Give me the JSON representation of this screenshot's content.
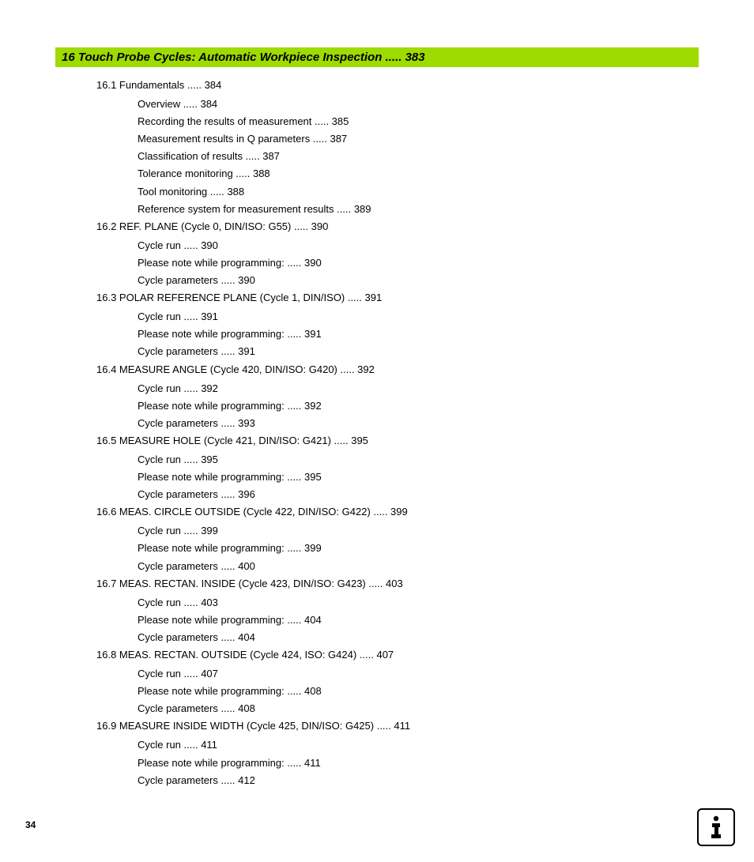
{
  "heading": {
    "number": "16",
    "title": "Touch Probe Cycles: Automatic Workpiece Inspection",
    "page": "383"
  },
  "sections": [
    {
      "num": "16.1",
      "title": "Fundamentals",
      "page": "384",
      "subs": [
        {
          "title": "Overview",
          "page": "384"
        },
        {
          "title": "Recording the results of measurement",
          "page": "385"
        },
        {
          "title": "Measurement results in Q parameters",
          "page": "387"
        },
        {
          "title": "Classification of results",
          "page": "387"
        },
        {
          "title": "Tolerance monitoring",
          "page": "388"
        },
        {
          "title": "Tool monitoring",
          "page": "388"
        },
        {
          "title": "Reference system for measurement results",
          "page": "389"
        }
      ]
    },
    {
      "num": "16.2",
      "title": "REF. PLANE (Cycle 0, DIN/ISO: G55)",
      "page": "390",
      "subs": [
        {
          "title": "Cycle run",
          "page": "390"
        },
        {
          "title": "Please note while programming:",
          "page": "390"
        },
        {
          "title": "Cycle parameters",
          "page": "390"
        }
      ]
    },
    {
      "num": "16.3",
      "title": "POLAR REFERENCE PLANE (Cycle 1, DIN/ISO)",
      "page": "391",
      "subs": [
        {
          "title": "Cycle run",
          "page": "391"
        },
        {
          "title": "Please note while programming:",
          "page": "391"
        },
        {
          "title": "Cycle parameters",
          "page": "391"
        }
      ]
    },
    {
      "num": "16.4",
      "title": "MEASURE ANGLE (Cycle 420, DIN/ISO: G420)",
      "page": "392",
      "subs": [
        {
          "title": "Cycle run",
          "page": "392"
        },
        {
          "title": "Please note while programming:",
          "page": "392"
        },
        {
          "title": "Cycle parameters",
          "page": "393"
        }
      ]
    },
    {
      "num": "16.5",
      "title": "MEASURE HOLE (Cycle 421, DIN/ISO: G421)",
      "page": "395",
      "subs": [
        {
          "title": "Cycle run",
          "page": "395"
        },
        {
          "title": "Please note while programming:",
          "page": "395"
        },
        {
          "title": "Cycle parameters",
          "page": "396"
        }
      ]
    },
    {
      "num": "16.6",
      "title": "MEAS. CIRCLE OUTSIDE (Cycle 422, DIN/ISO: G422)",
      "page": "399",
      "subs": [
        {
          "title": "Cycle run",
          "page": "399"
        },
        {
          "title": "Please note while programming:",
          "page": "399"
        },
        {
          "title": "Cycle parameters",
          "page": "400"
        }
      ]
    },
    {
      "num": "16.7",
      "title": "MEAS. RECTAN. INSIDE (Cycle 423, DIN/ISO: G423)",
      "page": "403",
      "subs": [
        {
          "title": "Cycle run",
          "page": "403"
        },
        {
          "title": "Please note while programming:",
          "page": "404"
        },
        {
          "title": "Cycle parameters",
          "page": "404"
        }
      ]
    },
    {
      "num": "16.8",
      "title": "MEAS. RECTAN. OUTSIDE (Cycle 424, ISO: G424)",
      "page": "407",
      "subs": [
        {
          "title": "Cycle run",
          "page": "407"
        },
        {
          "title": "Please note while programming:",
          "page": "408"
        },
        {
          "title": "Cycle parameters",
          "page": "408"
        }
      ]
    },
    {
      "num": "16.9",
      "title": "MEASURE INSIDE WIDTH (Cycle 425, DIN/ISO: G425)",
      "page": "411",
      "subs": [
        {
          "title": "Cycle run",
          "page": "411"
        },
        {
          "title": "Please note while programming:",
          "page": "411"
        },
        {
          "title": "Cycle parameters",
          "page": "412"
        }
      ]
    }
  ],
  "page_number": "34",
  "dots": "....."
}
